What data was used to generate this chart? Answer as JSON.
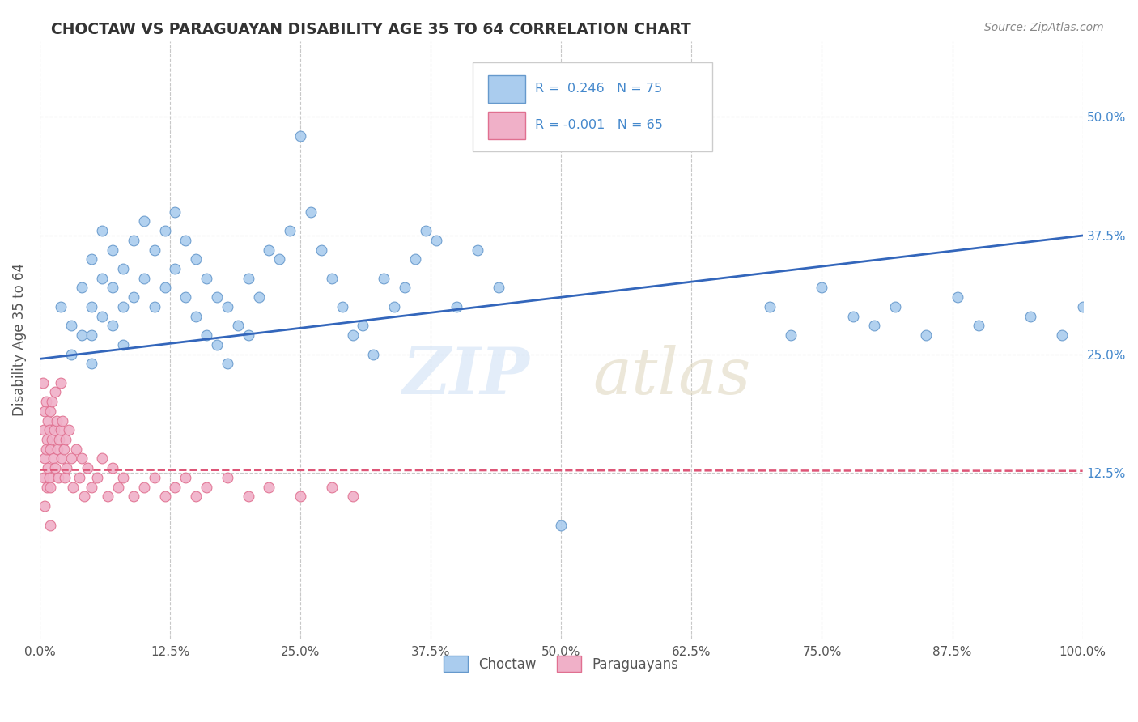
{
  "title": "CHOCTAW VS PARAGUAYAN DISABILITY AGE 35 TO 64 CORRELATION CHART",
  "source_text": "Source: ZipAtlas.com",
  "ylabel": "Disability Age 35 to 64",
  "xlim": [
    0.0,
    1.0
  ],
  "ylim": [
    -0.05,
    0.58
  ],
  "xtick_labels": [
    "0.0%",
    "12.5%",
    "25.0%",
    "37.5%",
    "50.0%",
    "62.5%",
    "75.0%",
    "87.5%",
    "100.0%"
  ],
  "xtick_positions": [
    0.0,
    0.125,
    0.25,
    0.375,
    0.5,
    0.625,
    0.75,
    0.875,
    1.0
  ],
  "ytick_labels": [
    "12.5%",
    "25.0%",
    "37.5%",
    "50.0%"
  ],
  "ytick_positions": [
    0.125,
    0.25,
    0.375,
    0.5
  ],
  "background_color": "#ffffff",
  "grid_color": "#c8c8c8",
  "choctaw_color": "#aaccee",
  "paraguayan_color": "#f0b0c8",
  "choctaw_edge_color": "#6699cc",
  "paraguayan_edge_color": "#e07090",
  "choctaw_line_color": "#3366bb",
  "paraguayan_line_color": "#dd5577",
  "legend_R_choctaw": "0.246",
  "legend_N_choctaw": "75",
  "legend_R_paraguayan": "-0.001",
  "legend_N_paraguayan": "65",
  "choctaw_line_x0": 0.0,
  "choctaw_line_y0": 0.245,
  "choctaw_line_x1": 1.0,
  "choctaw_line_y1": 0.375,
  "paraguayan_line_x0": 0.0,
  "paraguayan_line_y0": 0.128,
  "paraguayan_line_x1": 1.0,
  "paraguayan_line_y1": 0.127,
  "choctaw_scatter_x": [
    0.02,
    0.03,
    0.03,
    0.04,
    0.04,
    0.05,
    0.05,
    0.05,
    0.05,
    0.06,
    0.06,
    0.06,
    0.07,
    0.07,
    0.07,
    0.08,
    0.08,
    0.08,
    0.09,
    0.09,
    0.1,
    0.1,
    0.11,
    0.11,
    0.12,
    0.12,
    0.13,
    0.13,
    0.14,
    0.14,
    0.15,
    0.15,
    0.16,
    0.16,
    0.17,
    0.17,
    0.18,
    0.18,
    0.19,
    0.2,
    0.2,
    0.21,
    0.22,
    0.23,
    0.24,
    0.25,
    0.26,
    0.27,
    0.28,
    0.29,
    0.3,
    0.31,
    0.32,
    0.33,
    0.34,
    0.35,
    0.36,
    0.37,
    0.38,
    0.4,
    0.42,
    0.44,
    0.5,
    0.7,
    0.72,
    0.75,
    0.78,
    0.8,
    0.82,
    0.85,
    0.88,
    0.9,
    0.95,
    0.98,
    1.0
  ],
  "choctaw_scatter_y": [
    0.3,
    0.28,
    0.25,
    0.32,
    0.27,
    0.35,
    0.3,
    0.27,
    0.24,
    0.38,
    0.33,
    0.29,
    0.36,
    0.32,
    0.28,
    0.34,
    0.3,
    0.26,
    0.37,
    0.31,
    0.39,
    0.33,
    0.36,
    0.3,
    0.38,
    0.32,
    0.4,
    0.34,
    0.37,
    0.31,
    0.35,
    0.29,
    0.33,
    0.27,
    0.31,
    0.26,
    0.3,
    0.24,
    0.28,
    0.33,
    0.27,
    0.31,
    0.36,
    0.35,
    0.38,
    0.48,
    0.4,
    0.36,
    0.33,
    0.3,
    0.27,
    0.28,
    0.25,
    0.33,
    0.3,
    0.32,
    0.35,
    0.38,
    0.37,
    0.3,
    0.36,
    0.32,
    0.07,
    0.3,
    0.27,
    0.32,
    0.29,
    0.28,
    0.3,
    0.27,
    0.31,
    0.28,
    0.29,
    0.27,
    0.3
  ],
  "paraguayan_scatter_x": [
    0.003,
    0.004,
    0.004,
    0.005,
    0.005,
    0.005,
    0.006,
    0.006,
    0.007,
    0.007,
    0.008,
    0.008,
    0.009,
    0.009,
    0.01,
    0.01,
    0.01,
    0.01,
    0.012,
    0.012,
    0.013,
    0.014,
    0.015,
    0.015,
    0.016,
    0.017,
    0.018,
    0.019,
    0.02,
    0.02,
    0.021,
    0.022,
    0.023,
    0.024,
    0.025,
    0.026,
    0.028,
    0.03,
    0.032,
    0.035,
    0.038,
    0.04,
    0.043,
    0.046,
    0.05,
    0.055,
    0.06,
    0.065,
    0.07,
    0.075,
    0.08,
    0.09,
    0.1,
    0.11,
    0.12,
    0.13,
    0.14,
    0.15,
    0.16,
    0.18,
    0.2,
    0.22,
    0.25,
    0.28,
    0.3
  ],
  "paraguayan_scatter_y": [
    0.22,
    0.17,
    0.12,
    0.19,
    0.14,
    0.09,
    0.2,
    0.15,
    0.16,
    0.11,
    0.18,
    0.13,
    0.17,
    0.12,
    0.19,
    0.15,
    0.11,
    0.07,
    0.2,
    0.16,
    0.14,
    0.17,
    0.21,
    0.13,
    0.18,
    0.15,
    0.12,
    0.16,
    0.22,
    0.17,
    0.14,
    0.18,
    0.15,
    0.12,
    0.16,
    0.13,
    0.17,
    0.14,
    0.11,
    0.15,
    0.12,
    0.14,
    0.1,
    0.13,
    0.11,
    0.12,
    0.14,
    0.1,
    0.13,
    0.11,
    0.12,
    0.1,
    0.11,
    0.12,
    0.1,
    0.11,
    0.12,
    0.1,
    0.11,
    0.12,
    0.1,
    0.11,
    0.1,
    0.11,
    0.1
  ]
}
